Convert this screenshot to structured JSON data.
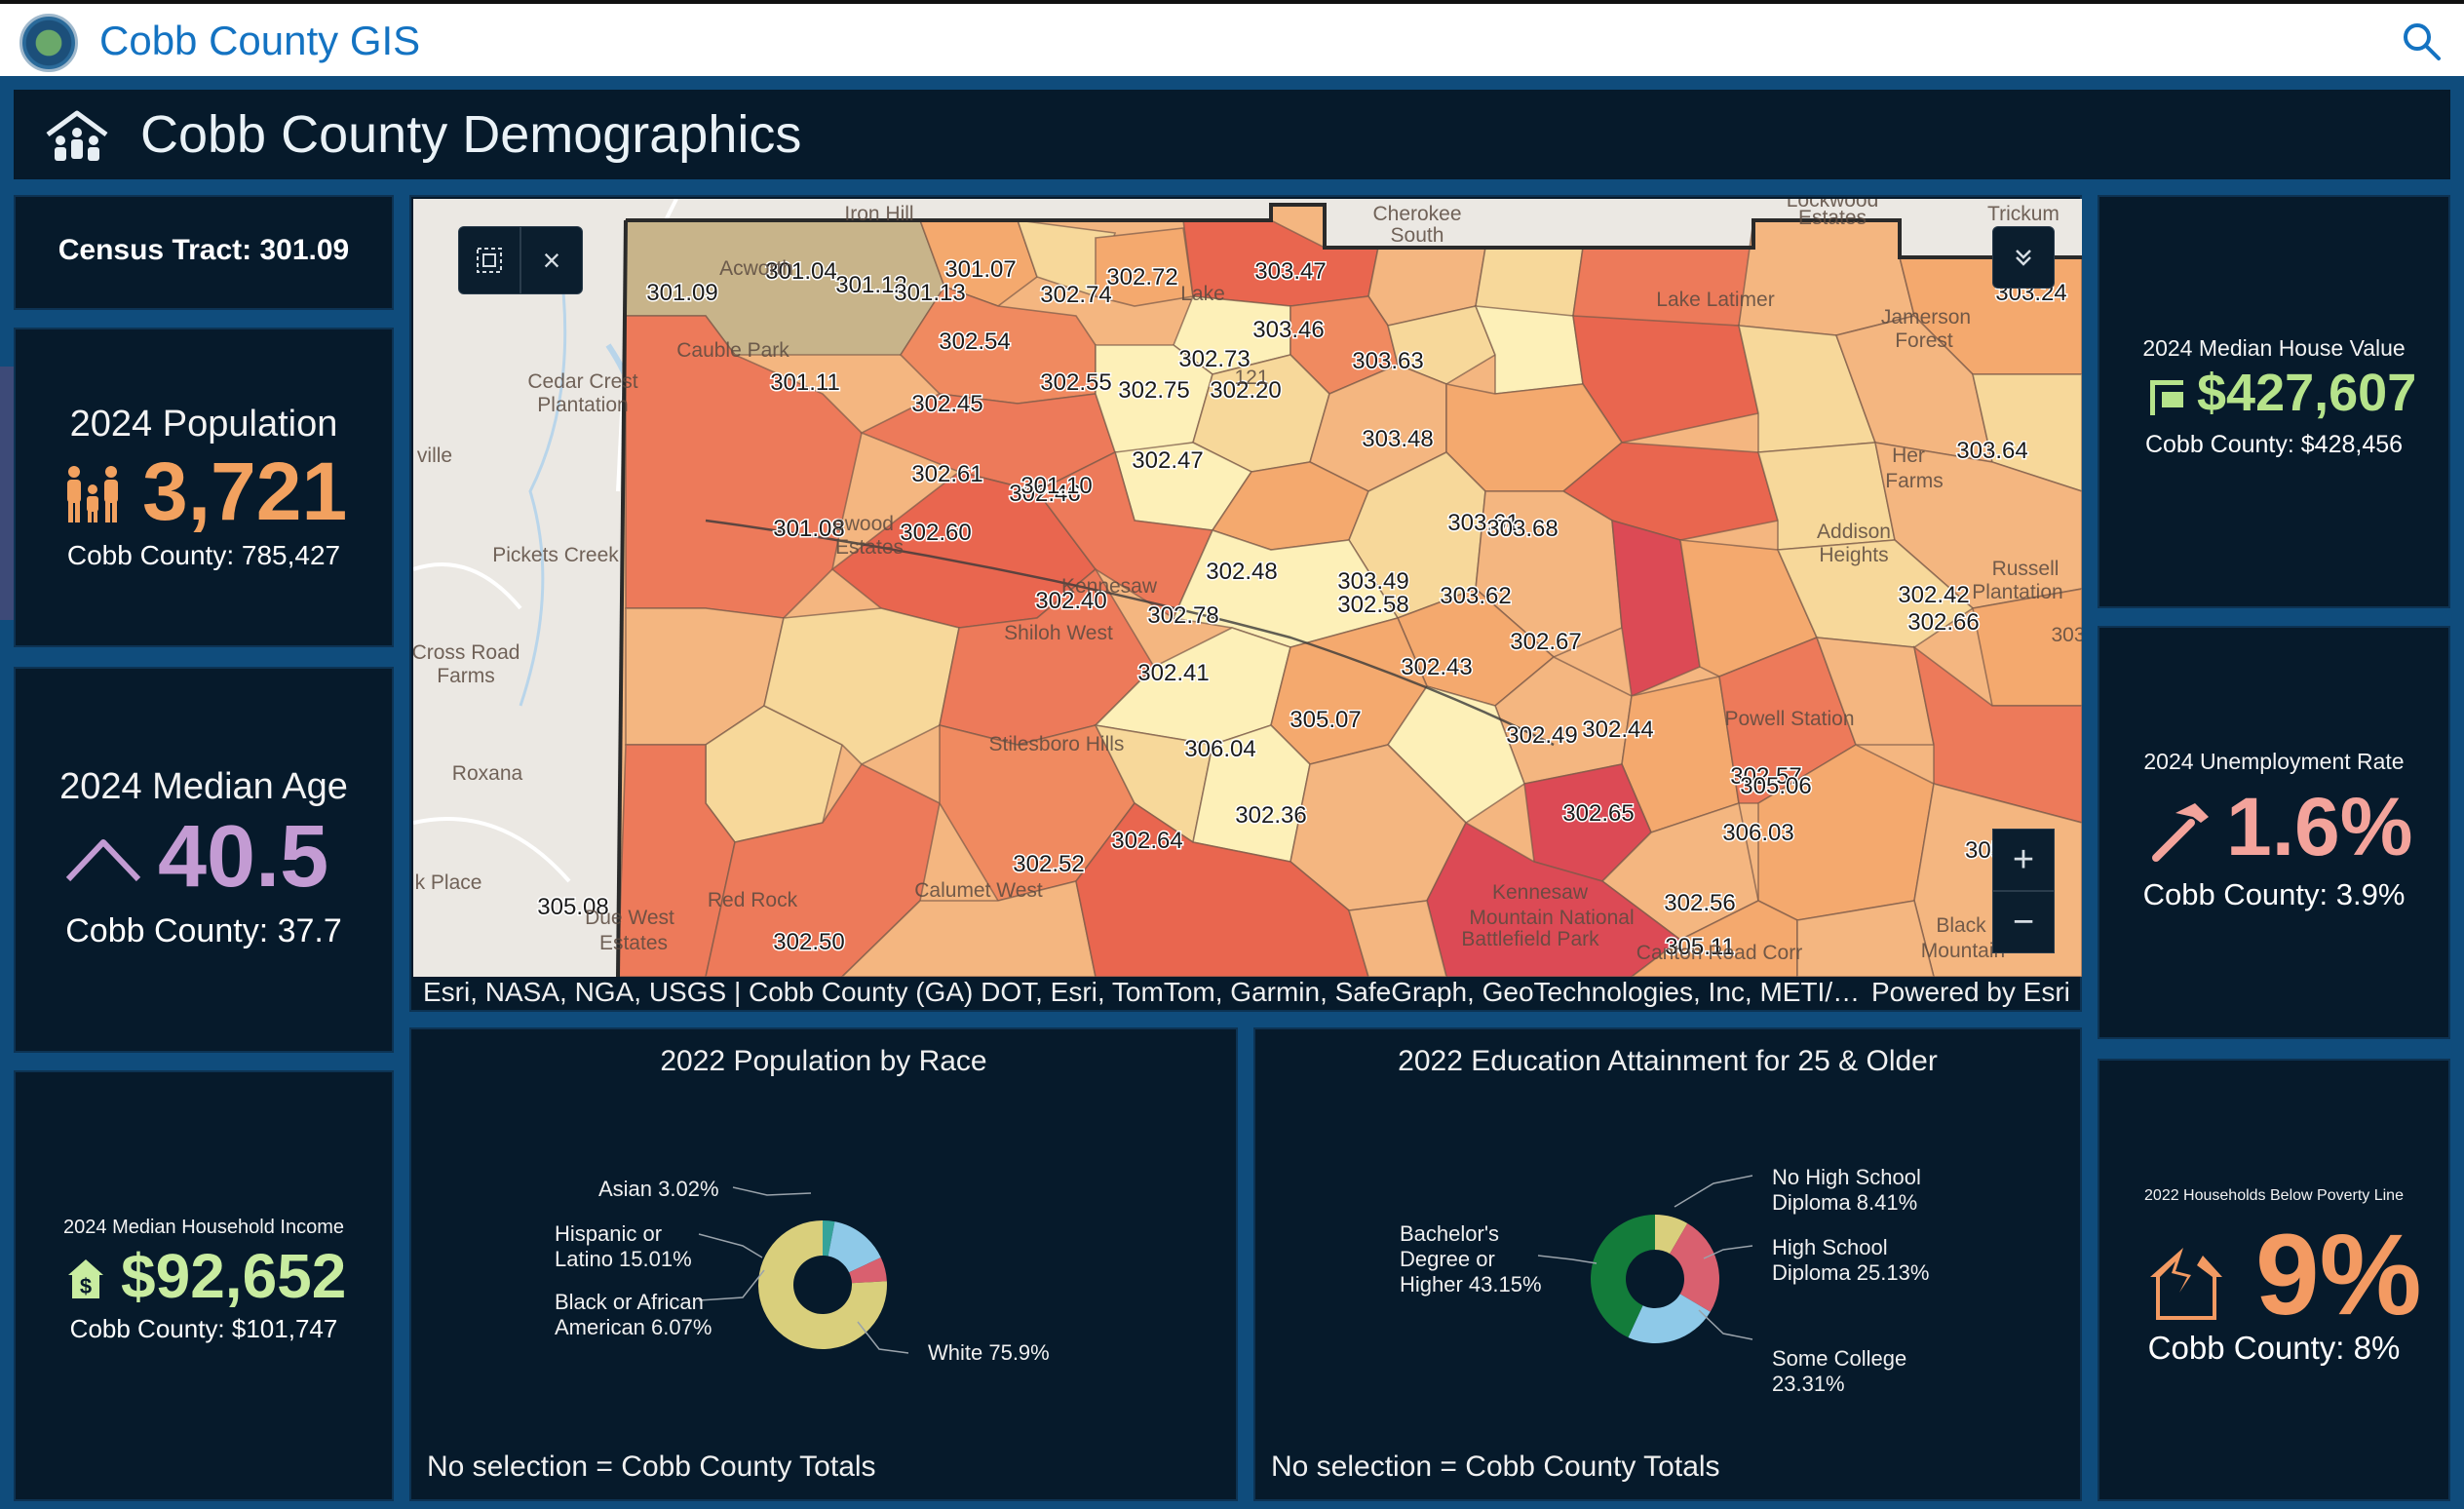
{
  "app": {
    "title": "Cobb County GIS",
    "logo_icon": "county-seal-icon",
    "search_icon": "search-icon"
  },
  "header": {
    "title": "Cobb County Demographics",
    "icon": "people-house-icon"
  },
  "tract": {
    "label": "Census Tract: 301.09"
  },
  "population": {
    "title": "2024 Population",
    "value": "3,721",
    "county": "Cobb County: 785,427",
    "icon": "family-icon",
    "color": "#f2a15f"
  },
  "median_age": {
    "title": "2024 Median Age",
    "value": "40.5",
    "county": "Cobb County: 37.7",
    "icon": "caret-up-icon",
    "color": "#c39bd3"
  },
  "income": {
    "title": "2024 Median Household Income",
    "value": "$92,652",
    "county": "Cobb County: $101,747",
    "icon": "dollar-house-icon",
    "color": "#c8eca0"
  },
  "house_value": {
    "title": "2024 Median House Value",
    "value": "$427,607",
    "county": "Cobb County: $428,456",
    "icon": "house-sign-icon",
    "color": "#b6e38b"
  },
  "unemployment": {
    "title": "2024 Unemployment Rate",
    "value": "1.6%",
    "county": "Cobb County: 3.9%",
    "icon": "hammer-icon",
    "color": "#f3a39b"
  },
  "poverty": {
    "title": "2022 Households Below Poverty Line",
    "value": "9%",
    "county": "Cobb County: 8%",
    "icon": "broken-house-icon",
    "color": "#f39a62"
  },
  "map": {
    "attribution": "Esri, NASA, NGA, USGS | Cobb County (GA) DOT, Esri, TomTom, Garmin, SafeGraph, GeoTechnologies, Inc, METI/…",
    "powered_by": "Powered by Esri",
    "zoom_in": "+",
    "zoom_out": "−",
    "close": "×",
    "tract_labels": [
      "301.04",
      "301.12",
      "301.13",
      "301.07",
      "302.74",
      "302.72",
      "303.47",
      "303.24",
      "301.09",
      "302.54",
      "302.55",
      "302.75",
      "302.73",
      "302.20",
      "303.46",
      "303.63",
      "301.11",
      "302.45",
      "302.47",
      "303.48",
      "303.64",
      "302.61",
      "302.46",
      "302.60",
      "301.10",
      "301.08",
      "302.48",
      "303.61",
      "303.68",
      "302.40",
      "302.58",
      "302.78",
      "303.49",
      "303.62",
      "302.42",
      "302.66",
      "302.67",
      "302.43",
      "302.41",
      "306.04",
      "305.07",
      "302.44",
      "302.49",
      "302.57",
      "305.06",
      "306.03",
      "302.65",
      "302.36",
      "302.64",
      "305.08",
      "302.52",
      "302.56",
      "305.11",
      "305.1",
      "302.50"
    ],
    "place_labels": [
      "Iron Hill",
      "Cherokee",
      "South",
      "Lockwood",
      "Estates",
      "Trickum",
      "Acworth",
      "Lake",
      "Lake Latimer",
      "Jamerson",
      "Forest",
      "Cauble Park",
      "Cedar Crest",
      "Plantation",
      "ville",
      "Her",
      "Farms",
      "Addison",
      "Heights",
      "Russell",
      "Plantation",
      "Pickets Creek",
      "ewood",
      "Estates",
      "Kennesaw",
      "Shiloh West",
      "Cross Road",
      "Farms",
      "Stilesboro Hills",
      "Powell Station",
      "Roxana",
      "Red Rock",
      "Calumet West",
      "Kennesaw",
      "Mountain National",
      "Battlefield Park",
      "Canton Road Corr",
      "k Place",
      "Due West",
      "Estates",
      "Black",
      "Mountain",
      "303",
      "121"
    ]
  },
  "race_chart": {
    "title": "2022 Population by Race",
    "footer": "No selection = Cobb County Totals",
    "labels": {
      "asian": "Asian 3.02%",
      "hispanic_1": "Hispanic or",
      "hispanic_2": "Latino 15.01%",
      "black_1": "Black or African",
      "black_2": "American 6.07%",
      "white": "White 75.9%"
    }
  },
  "edu_chart": {
    "title": "2022 Education Attainment for 25 & Older",
    "footer": "No selection = Cobb County Totals",
    "labels": {
      "nohs_1": "No High School",
      "nohs_2": "Diploma 8.41%",
      "hs_1": "High School",
      "hs_2": "Diploma 25.13%",
      "college_1": "Some College",
      "college_2": "23.31%",
      "bach_1": "Bachelor's",
      "bach_2": "Degree or",
      "bach_3": "Higher 43.15%"
    }
  },
  "chart_data": [
    {
      "type": "pie",
      "title": "2022 Population by Race",
      "categories": [
        "Asian",
        "Hispanic or Latino",
        "Black or African American",
        "White"
      ],
      "values": [
        3.02,
        15.01,
        6.07,
        75.9
      ],
      "colors": [
        "#35a39a",
        "#8ec9e8",
        "#d9606f",
        "#d9cf7c"
      ]
    },
    {
      "type": "pie",
      "title": "2022 Education Attainment for 25 & Older",
      "categories": [
        "No High School Diploma",
        "High School Diploma",
        "Some College",
        "Bachelor's Degree or Higher"
      ],
      "values": [
        8.41,
        25.13,
        23.31,
        43.15
      ],
      "colors": [
        "#d9cf7c",
        "#d9606f",
        "#8ec9e8",
        "#137c3a"
      ]
    }
  ]
}
